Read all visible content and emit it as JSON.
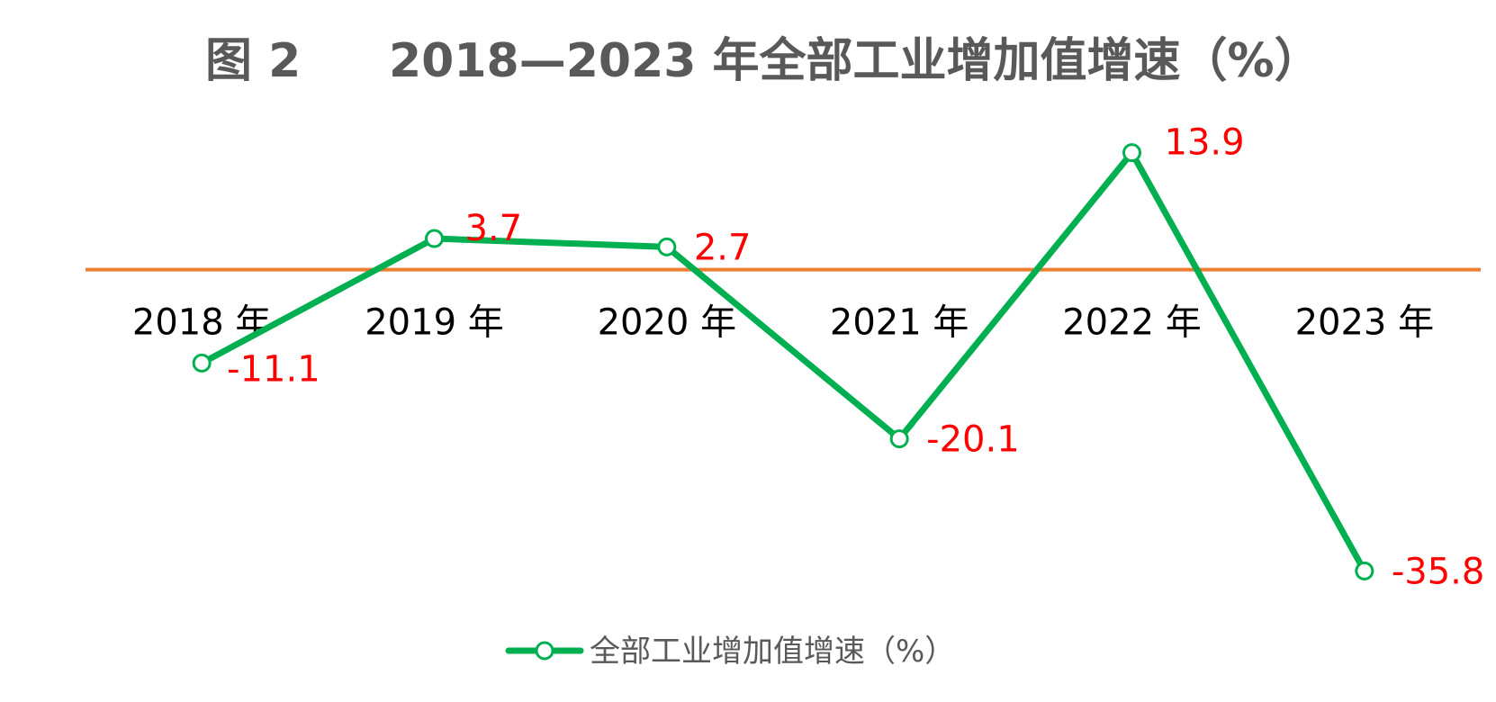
{
  "title": {
    "figure": "图 2",
    "text": "2018—2023 年全部工业增加值增速（%）"
  },
  "colors": {
    "series": "#00B050",
    "axis": "#ED7D31",
    "data_label": "#FF0000",
    "title": "#595959"
  },
  "chart_data": {
    "type": "line",
    "title": "2018—2023 年全部工业增加值增速（%）",
    "categories": [
      "2018 年",
      "2019 年",
      "2020 年",
      "2021 年",
      "2022 年",
      "2023 年"
    ],
    "series": [
      {
        "name": "全部工业增加值增速（%）",
        "values": [
          -11.1,
          3.7,
          2.7,
          -20.1,
          13.9,
          -35.8
        ],
        "labels": [
          "-11.1",
          "3.7",
          "2.7",
          "-20.1",
          "13.9",
          "-35.8"
        ]
      }
    ],
    "ylim": [
      -38,
      16
    ],
    "xlabel": "",
    "ylabel": "",
    "grid": false,
    "legend": "bottom",
    "axis_crosses_at": 0
  }
}
